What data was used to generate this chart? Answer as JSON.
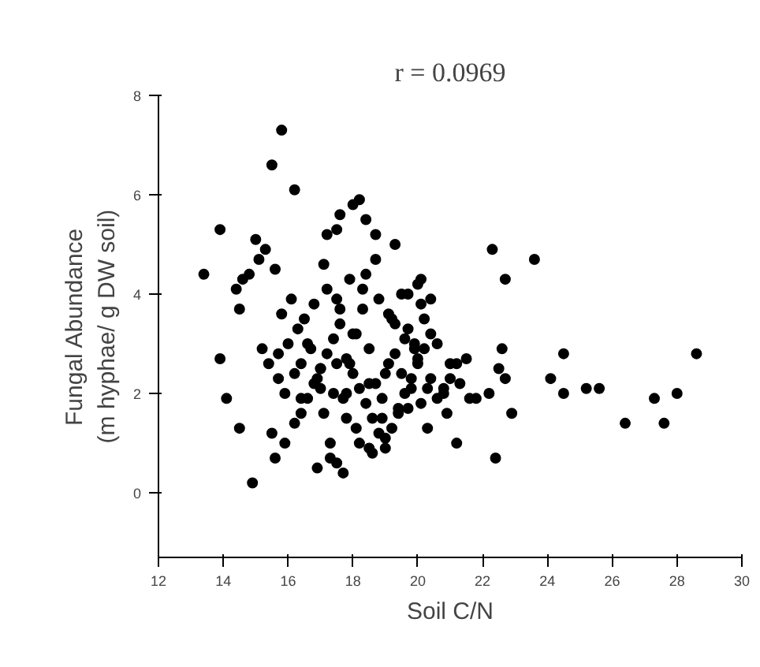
{
  "chart_data": {
    "type": "scatter",
    "title": "r = 0.0969",
    "xlabel": "Soil C/N",
    "ylabel": "Fungal Abundance\n(m hyphae/ g DW soil)",
    "xlim": [
      12,
      30
    ],
    "xticks": [
      12,
      14,
      16,
      18,
      20,
      22,
      24,
      26,
      28,
      30
    ],
    "ylim": [
      -1.3,
      8
    ],
    "yticks": [
      0,
      2,
      4,
      6,
      8
    ],
    "marker": "circle",
    "series": [
      {
        "color": "#000000",
        "x": [
          13.4,
          13.9,
          13.9,
          14.1,
          14.5,
          14.9,
          15.5,
          15.8,
          16.2,
          15.0,
          15.3,
          14.8,
          14.6,
          14.5,
          14.4,
          15.1,
          15.6,
          15.8,
          16.0,
          15.2,
          15.4,
          15.7,
          15.9,
          16.1,
          16.3,
          15.5,
          15.6,
          15.9,
          16.2,
          16.4,
          16.6,
          16.8,
          17.0,
          17.2,
          17.4,
          17.6,
          17.8,
          18.0,
          18.2,
          18.4,
          18.6,
          18.8,
          19.0,
          19.2,
          19.4,
          19.6,
          19.8,
          20.0,
          20.2,
          20.4,
          16.5,
          16.7,
          16.9,
          17.1,
          17.3,
          17.5,
          17.7,
          17.9,
          18.1,
          18.3,
          18.5,
          18.7,
          18.9,
          19.1,
          19.3,
          19.5,
          19.7,
          19.9,
          20.1,
          20.3,
          16.4,
          16.8,
          17.2,
          17.6,
          18.0,
          18.4,
          18.8,
          19.2,
          19.6,
          20.0,
          20.4,
          20.8,
          16.6,
          17.0,
          17.4,
          17.8,
          18.2,
          18.6,
          19.0,
          19.4,
          19.8,
          20.2,
          20.6,
          21.0,
          17.1,
          17.5,
          17.9,
          18.3,
          18.7,
          19.1,
          19.5,
          19.9,
          16.9,
          17.3,
          17.7,
          18.1,
          18.5,
          18.9,
          19.3,
          19.7,
          20.1,
          17.6,
          18.0,
          18.2,
          18.4,
          17.2,
          17.5,
          18.7,
          19.3,
          20.0,
          19.7,
          20.4,
          20.1,
          20.8,
          21.3,
          21.5,
          21.2,
          21.0,
          20.6,
          20.3,
          20.9,
          21.2,
          21.6,
          21.8,
          22.2,
          22.3,
          22.7,
          23.6,
          22.4,
          22.9,
          22.5,
          22.6,
          22.7,
          24.5,
          24.1,
          24.5,
          25.2,
          25.6,
          26.4,
          27.3,
          27.6,
          28.0,
          28.6,
          19.0,
          18.5,
          17.8,
          17.0,
          16.2,
          15.7,
          16.4,
          17.5
        ],
        "values": [
          4.4,
          5.3,
          2.7,
          1.9,
          1.3,
          0.2,
          6.6,
          7.3,
          6.1,
          5.1,
          4.9,
          4.4,
          4.3,
          3.7,
          4.1,
          4.7,
          4.5,
          3.6,
          3.0,
          2.9,
          2.6,
          2.3,
          2.0,
          3.9,
          3.3,
          1.2,
          0.7,
          1.0,
          1.4,
          1.6,
          1.9,
          2.2,
          2.5,
          2.8,
          3.1,
          3.4,
          2.7,
          2.4,
          2.1,
          1.8,
          1.5,
          1.2,
          0.9,
          1.3,
          1.7,
          2.0,
          2.3,
          2.6,
          2.9,
          3.2,
          3.5,
          2.9,
          2.3,
          1.6,
          1.0,
          0.6,
          1.9,
          2.6,
          3.2,
          3.7,
          2.9,
          2.2,
          1.5,
          2.6,
          3.4,
          2.4,
          1.7,
          2.9,
          3.8,
          2.1,
          2.6,
          3.8,
          4.1,
          3.7,
          3.2,
          4.4,
          3.9,
          3.5,
          3.1,
          2.7,
          2.3,
          2.0,
          3.0,
          2.5,
          2.0,
          1.5,
          1.0,
          0.8,
          1.1,
          1.6,
          2.1,
          3.5,
          3.0,
          2.6,
          4.6,
          3.9,
          4.3,
          4.1,
          4.7,
          3.6,
          4.0,
          3.0,
          0.5,
          0.7,
          0.4,
          1.3,
          0.9,
          1.9,
          2.8,
          3.3,
          1.8,
          5.6,
          5.8,
          5.9,
          5.5,
          5.2,
          5.3,
          5.2,
          5.0,
          4.2,
          4.0,
          3.9,
          4.3,
          2.1,
          2.2,
          2.7,
          2.6,
          2.3,
          1.9,
          1.3,
          1.6,
          1.0,
          1.9,
          1.9,
          2.0,
          4.9,
          4.3,
          4.7,
          0.7,
          1.6,
          2.5,
          2.9,
          2.3,
          2.8,
          2.3,
          2.0,
          2.1,
          2.1,
          1.4,
          1.9,
          1.4,
          2.0,
          2.8,
          2.4,
          2.2,
          2.0,
          2.1,
          2.4,
          2.8,
          1.9,
          2.6
        ]
      }
    ]
  }
}
